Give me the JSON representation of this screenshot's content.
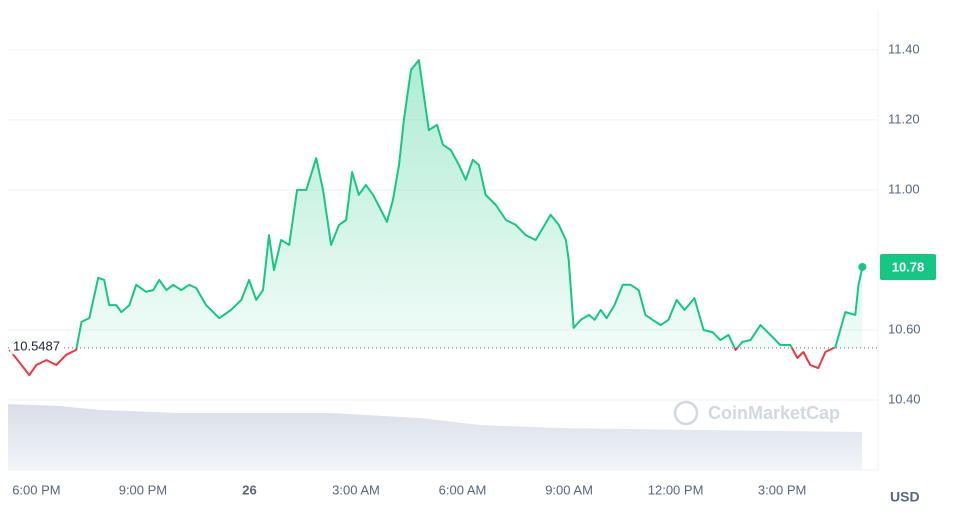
{
  "chart_data": {
    "type": "line",
    "x": [
      17.24,
      17.58,
      17.8,
      18.0,
      18.28,
      18.56,
      18.84,
      19.12,
      19.27,
      19.49,
      19.74,
      19.91,
      20.05,
      20.25,
      20.39,
      20.62,
      20.81,
      21.09,
      21.29,
      21.46,
      21.66,
      21.85,
      22.08,
      22.3,
      22.5,
      22.78,
      23.15,
      23.48,
      23.77,
      23.99,
      24.19,
      24.38,
      24.55,
      24.69,
      24.89,
      25.12,
      25.34,
      25.6,
      25.88,
      26.07,
      26.3,
      26.52,
      26.72,
      26.89,
      27.08,
      27.28,
      27.48,
      27.7,
      27.87,
      28.04,
      28.21,
      28.35,
      28.55,
      28.77,
      28.91,
      29.05,
      29.28,
      29.45,
      29.67,
      29.9,
      30.09,
      30.29,
      30.46,
      30.65,
      30.94,
      31.22,
      31.5,
      31.78,
      32.06,
      32.26,
      32.48,
      32.71,
      32.91,
      32.99,
      33.13,
      33.33,
      33.56,
      33.72,
      33.89,
      34.06,
      34.28,
      34.51,
      34.73,
      34.96,
      35.15,
      35.35,
      35.58,
      35.8,
      36.03,
      36.25,
      36.53,
      36.79,
      37.04,
      37.26,
      37.49,
      37.69,
      37.88,
      38.11,
      38.39,
      38.67,
      38.95,
      39.23,
      39.43,
      39.6,
      39.79,
      40.02,
      40.22,
      40.5,
      40.78,
      41.06,
      41.15,
      41.26
    ],
    "values": [
      10.543,
      10.5,
      10.471,
      10.5,
      10.514,
      10.5,
      10.529,
      10.543,
      10.623,
      10.634,
      10.749,
      10.743,
      10.671,
      10.671,
      10.651,
      10.671,
      10.729,
      10.709,
      10.714,
      10.743,
      10.714,
      10.729,
      10.714,
      10.729,
      10.72,
      10.671,
      10.634,
      10.657,
      10.686,
      10.743,
      10.686,
      10.714,
      10.871,
      10.771,
      10.857,
      10.843,
      11.0,
      11.0,
      11.091,
      11.0,
      10.843,
      10.9,
      10.914,
      11.051,
      10.986,
      11.014,
      10.986,
      10.943,
      10.909,
      10.971,
      11.071,
      11.2,
      11.343,
      11.371,
      11.271,
      11.171,
      11.186,
      11.129,
      11.114,
      11.071,
      11.029,
      11.086,
      11.071,
      10.986,
      10.957,
      10.914,
      10.9,
      10.871,
      10.857,
      10.891,
      10.929,
      10.9,
      10.857,
      10.8,
      10.606,
      10.629,
      10.643,
      10.629,
      10.657,
      10.634,
      10.671,
      10.729,
      10.729,
      10.714,
      10.643,
      10.629,
      10.614,
      10.629,
      10.686,
      10.657,
      10.691,
      10.6,
      10.594,
      10.571,
      10.586,
      10.543,
      10.566,
      10.571,
      10.614,
      10.586,
      10.557,
      10.557,
      10.52,
      10.537,
      10.5,
      10.491,
      10.537,
      10.551,
      10.651,
      10.643,
      10.729,
      10.78
    ],
    "up_color": "#16c784",
    "down_color": "#ea3943",
    "baseline": {
      "value": 10.5487,
      "label": "10.5487"
    },
    "current_price": "10.78",
    "currency": "USD",
    "watermark": "CoinMarketCap",
    "xlim": [
      17.2,
      41.7
    ],
    "xticks": [
      {
        "value": 18,
        "label": "6:00 PM"
      },
      {
        "value": 21,
        "label": "9:00 PM"
      },
      {
        "value": 24,
        "label": "26"
      },
      {
        "value": 27,
        "label": "3:00 AM"
      },
      {
        "value": 30,
        "label": "6:00 AM"
      },
      {
        "value": 33,
        "label": "9:00 AM"
      },
      {
        "value": 36,
        "label": "12:00 PM"
      },
      {
        "value": 39,
        "label": "3:00 PM"
      }
    ],
    "ylim": [
      10.2,
      11.514
    ],
    "yticks": [
      {
        "value": 10.4,
        "label": "10.40"
      },
      {
        "value": 10.6,
        "label": "10.60"
      },
      {
        "value": 11.0,
        "label": "11.00"
      },
      {
        "value": 11.2,
        "label": "11.20"
      },
      {
        "value": 11.4,
        "label": "11.40"
      }
    ],
    "grid": true
  }
}
